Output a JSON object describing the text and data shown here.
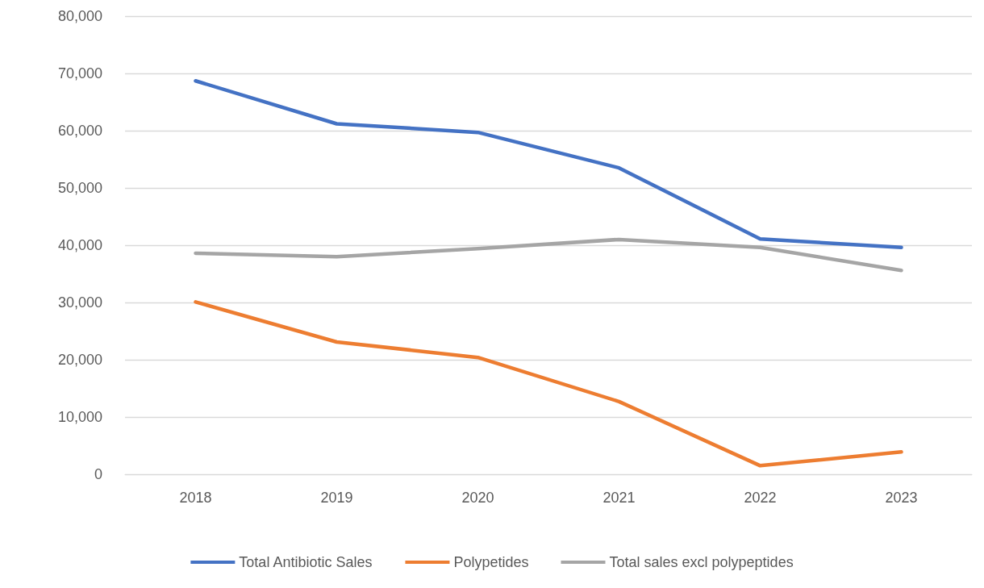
{
  "chart_data": {
    "type": "line",
    "categories": [
      "2018",
      "2019",
      "2020",
      "2021",
      "2022",
      "2023"
    ],
    "series": [
      {
        "name": "Total Antibiotic Sales",
        "color": "#4472c4",
        "values": [
          68700,
          61200,
          59700,
          53500,
          41100,
          39600
        ]
      },
      {
        "name": "Polypetides",
        "color": "#ed7d31",
        "values": [
          30100,
          23100,
          20400,
          12700,
          1500,
          3900
        ]
      },
      {
        "name": "Total sales excl polypeptides",
        "color": "#a5a5a5",
        "values": [
          38600,
          38000,
          39400,
          41000,
          39600,
          35600
        ]
      }
    ],
    "ylim": [
      0,
      80000
    ],
    "yticks": [
      0,
      {
        "value": 10000,
        "label": "10,000"
      },
      {
        "value": 20000,
        "label": "20,000"
      },
      {
        "value": 30000,
        "label": "30,000"
      },
      {
        "value": 40000,
        "label": "40,000"
      },
      {
        "value": 50000,
        "label": "50,000"
      },
      {
        "value": 60000,
        "label": "60,000"
      },
      {
        "value": 70000,
        "label": "70,000"
      },
      {
        "value": 80000,
        "label": "80,000"
      }
    ],
    "grid": "y",
    "legend": "bottom",
    "marker": "none",
    "line_style": "solid"
  }
}
